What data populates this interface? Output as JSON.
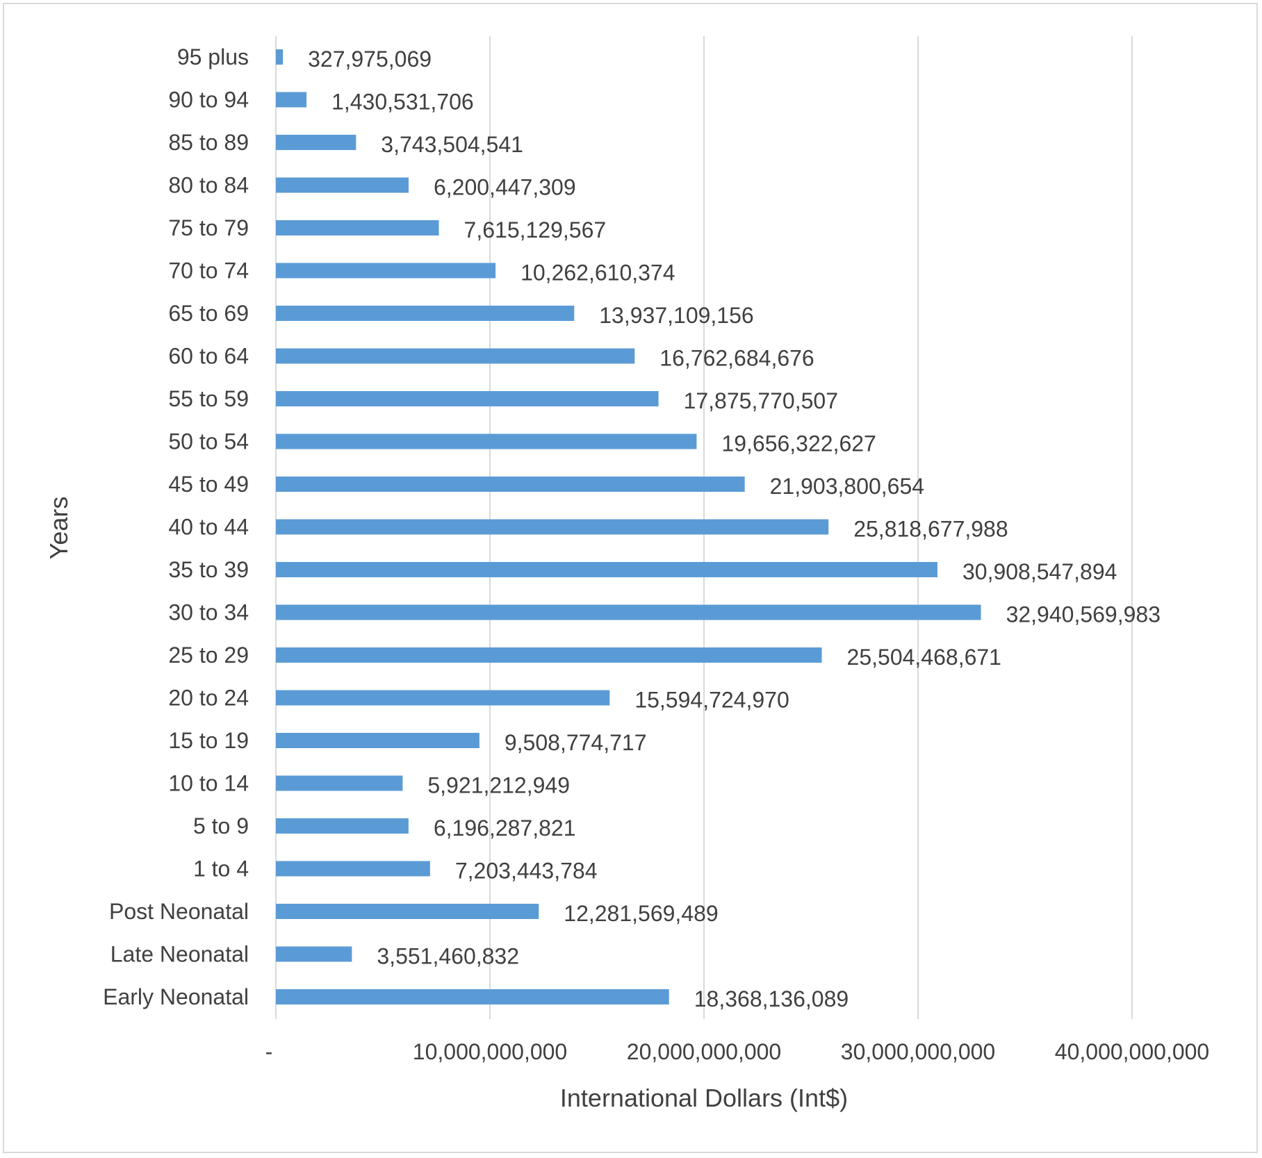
{
  "chart_data": {
    "type": "bar",
    "orientation": "horizontal",
    "categories": [
      "95 plus",
      "90 to 94",
      "85 to 89",
      "80 to 84",
      "75 to 79",
      "70 to 74",
      "65 to 69",
      "60 to 64",
      "55 to 59",
      "50 to 54",
      "45 to 49",
      "40 to 44",
      "35 to 39",
      "30 to 34",
      "25 to 29",
      "20 to 24",
      "15 to 19",
      "10 to 14",
      "5 to 9",
      "1 to 4",
      "Post Neonatal",
      "Late Neonatal",
      "Early Neonatal"
    ],
    "values": [
      327975069,
      1430531706,
      3743504541,
      6200447309,
      7615129567,
      10262610374,
      13937109156,
      16762684676,
      17875770507,
      19656322627,
      21903800654,
      25818677988,
      30908547894,
      32940569983,
      25504468671,
      15594724970,
      9508774717,
      5921212949,
      6196287821,
      7203443784,
      12281569489,
      3551460832,
      18368136089
    ],
    "data_labels": [
      "327,975,069",
      "1,430,531,706",
      "3,743,504,541",
      "6,200,447,309",
      "7,615,129,567",
      "10,262,610,374",
      "13,937,109,156",
      "16,762,684,676",
      "17,875,770,507",
      "19,656,322,627",
      "21,903,800,654",
      "25,818,677,988",
      "30,908,547,894",
      "32,940,569,983",
      "25,504,468,671",
      "15,594,724,970",
      "9,508,774,717",
      "5,921,212,949",
      "6,196,287,821",
      "7,203,443,784",
      "12,281,569,489",
      "3,551,460,832",
      "18,368,136,089"
    ],
    "xlabel": "International Dollars (Int$)",
    "ylabel": "Years",
    "xlim": [
      0,
      40000000000
    ],
    "x_ticks": [
      0,
      10000000000,
      20000000000,
      30000000000,
      40000000000
    ],
    "x_tick_labels": [
      "-",
      "10,000,000,000",
      "20,000,000,000",
      "30,000,000,000",
      "40,000,000,000"
    ],
    "grid": "vertical",
    "bar_color": "#5b9bd5"
  }
}
